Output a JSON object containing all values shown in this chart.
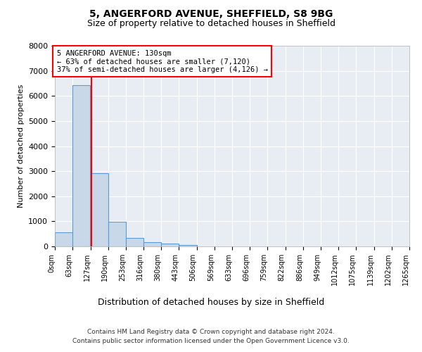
{
  "title1": "5, ANGERFORD AVENUE, SHEFFIELD, S8 9BG",
  "title2": "Size of property relative to detached houses in Sheffield",
  "xlabel": "Distribution of detached houses by size in Sheffield",
  "ylabel": "Number of detached properties",
  "footer1": "Contains HM Land Registry data © Crown copyright and database right 2024.",
  "footer2": "Contains public sector information licensed under the Open Government Licence v3.0.",
  "bar_color": "#c8d8e8",
  "bar_edge_color": "#5b9bd5",
  "background_color": "#e8edf4",
  "property_line_x": 130,
  "annotation_title": "5 ANGERFORD AVENUE: 130sqm",
  "annotation_line1": "← 63% of detached houses are smaller (7,120)",
  "annotation_line2": "37% of semi-detached houses are larger (4,126) →",
  "bin_edges": [
    0,
    63,
    127,
    190,
    253,
    316,
    380,
    443,
    506,
    569,
    633,
    696,
    759,
    822,
    886,
    949,
    1012,
    1075,
    1139,
    1202,
    1265
  ],
  "bar_heights": [
    550,
    6430,
    2930,
    970,
    330,
    160,
    110,
    70,
    0,
    0,
    0,
    0,
    0,
    0,
    0,
    0,
    0,
    0,
    0,
    0
  ],
  "ylim": [
    0,
    8000
  ],
  "yticks": [
    0,
    1000,
    2000,
    3000,
    4000,
    5000,
    6000,
    7000,
    8000
  ],
  "xlim": [
    0,
    1265
  ],
  "grid_color": "#ffffff",
  "tick_label_rotation": 90,
  "title1_fontsize": 10,
  "title2_fontsize": 9,
  "ylabel_fontsize": 8,
  "xlabel_fontsize": 9,
  "footer_fontsize": 6.5,
  "ytick_fontsize": 8,
  "xtick_fontsize": 7
}
